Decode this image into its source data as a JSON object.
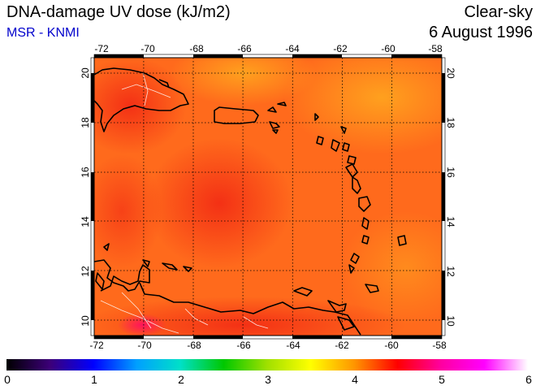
{
  "header": {
    "title": "DNA-damage UV dose (kJ/m2)",
    "subtitle": "MSR - KNMI",
    "condition": "Clear-sky",
    "date": "6 August 1996"
  },
  "map": {
    "longitude_ticks": [
      "-72",
      "-70",
      "-68",
      "-66",
      "-64",
      "-62",
      "-60",
      "-58"
    ],
    "latitude_ticks": [
      "10",
      "12",
      "14",
      "16",
      "18",
      "20"
    ],
    "extent": {
      "lon": [
        -72,
        -58
      ],
      "lat": [
        9.5,
        20.5
      ]
    },
    "dominant_value_range": [
      4.0,
      4.6
    ]
  },
  "colorbar": {
    "labels": [
      "0",
      "1",
      "2",
      "3",
      "4",
      "5",
      "6"
    ],
    "range": [
      0,
      6
    ],
    "colors": [
      "#000000",
      "#3c0078",
      "#0000ff",
      "#00a0ff",
      "#00e0c8",
      "#00c800",
      "#a0e000",
      "#ffff00",
      "#ff9600",
      "#ff0000",
      "#ff00a0",
      "#ff00ff",
      "#ffffff"
    ]
  }
}
